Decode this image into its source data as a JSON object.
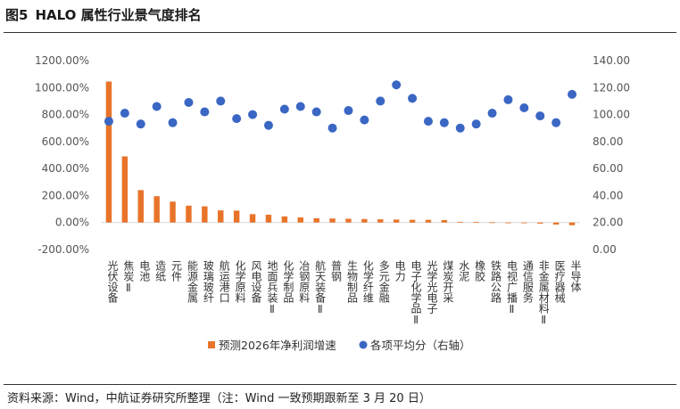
{
  "figure": {
    "number": "图5",
    "title": "HALO 属性行业景气度排名",
    "source": "资料来源：Wind，中航证券研究所整理（注：Wind 一致预期跟新至 3 月 20 日）"
  },
  "chart_data": {
    "type": "bar+scatter",
    "categories": [
      "光伏设备",
      "焦炭Ⅱ",
      "电池",
      "造纸",
      "元件",
      "能源金属",
      "玻璃玻纤",
      "航运港口",
      "化学原料",
      "风电设备",
      "地面兵装Ⅱ",
      "化学制品",
      "冶钢原料",
      "航天装备Ⅱ",
      "普钢",
      "生物制品",
      "化学纤维",
      "多元金融",
      "电力",
      "电子化学品Ⅱ",
      "光学光电子",
      "煤炭开采",
      "水泥",
      "橡胶",
      "铁路公路",
      "电视广播Ⅱ",
      "通信服务",
      "非金属材料Ⅱ",
      "医疗器械",
      "半导体"
    ],
    "series": [
      {
        "name": "预测2026年净利润增速",
        "type": "bar",
        "axis": "left",
        "color": "#E8742A",
        "unit": "%",
        "values": [
          1045,
          490,
          240,
          195,
          155,
          125,
          120,
          90,
          88,
          62,
          58,
          45,
          38,
          32,
          30,
          28,
          26,
          24,
          22,
          20,
          20,
          18,
          5,
          3,
          2,
          -2,
          -4,
          -8,
          -15,
          -20
        ]
      },
      {
        "name": "各项平均分（右轴）",
        "type": "scatter",
        "axis": "right",
        "color": "#3A66C4",
        "values": [
          95,
          101,
          93,
          106,
          94,
          109,
          102,
          110,
          97,
          100,
          92,
          104,
          106,
          102,
          90,
          103,
          96,
          110,
          122,
          112,
          95,
          94,
          90,
          93,
          101,
          111,
          105,
          99,
          94,
          115
        ]
      }
    ],
    "y_left": {
      "min": -200,
      "max": 1200,
      "ticks": [
        "-200.00%",
        "0.00%",
        "200.00%",
        "400.00%",
        "600.00%",
        "800.00%",
        "1000.00%",
        "1200.00%"
      ]
    },
    "y_right": {
      "min": 0,
      "max": 140,
      "ticks": [
        "0.00",
        "20.00",
        "40.00",
        "60.00",
        "80.00",
        "100.00",
        "120.00",
        "140.00"
      ]
    },
    "legend": {
      "position": "bottom"
    },
    "grid": false
  }
}
